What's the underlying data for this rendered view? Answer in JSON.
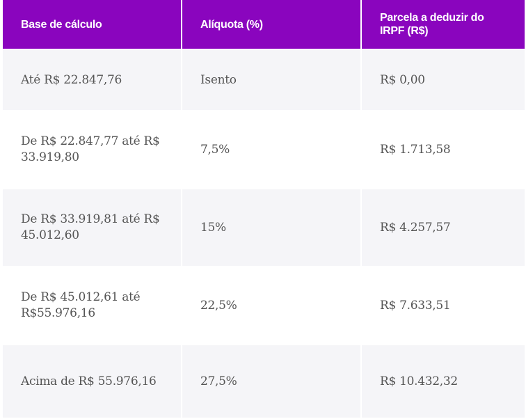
{
  "header_color": "#8A05BE",
  "columns": [
    "Base de cálculo",
    "Alíquota (%)",
    "Parcela a deduzir do IRPF (R$)"
  ],
  "rows": [
    [
      "Até R$ 22.847,76",
      "Isento",
      "R$ 0,00"
    ],
    [
      "De R$ 22.847,77 até R$ 33.919,80",
      "7,5%",
      "R$ 1.713,58"
    ],
    [
      "De R$ 33.919,81 até R$ 45.012,60",
      "15%",
      "R$ 4.257,57"
    ],
    [
      "De R$ 45.012,61 até R$55.976,16",
      "22,5%",
      "R$ 7.633,51"
    ],
    [
      "Acima de R$ 55.976,16",
      "27,5%",
      "R$ 10.432,32"
    ]
  ]
}
